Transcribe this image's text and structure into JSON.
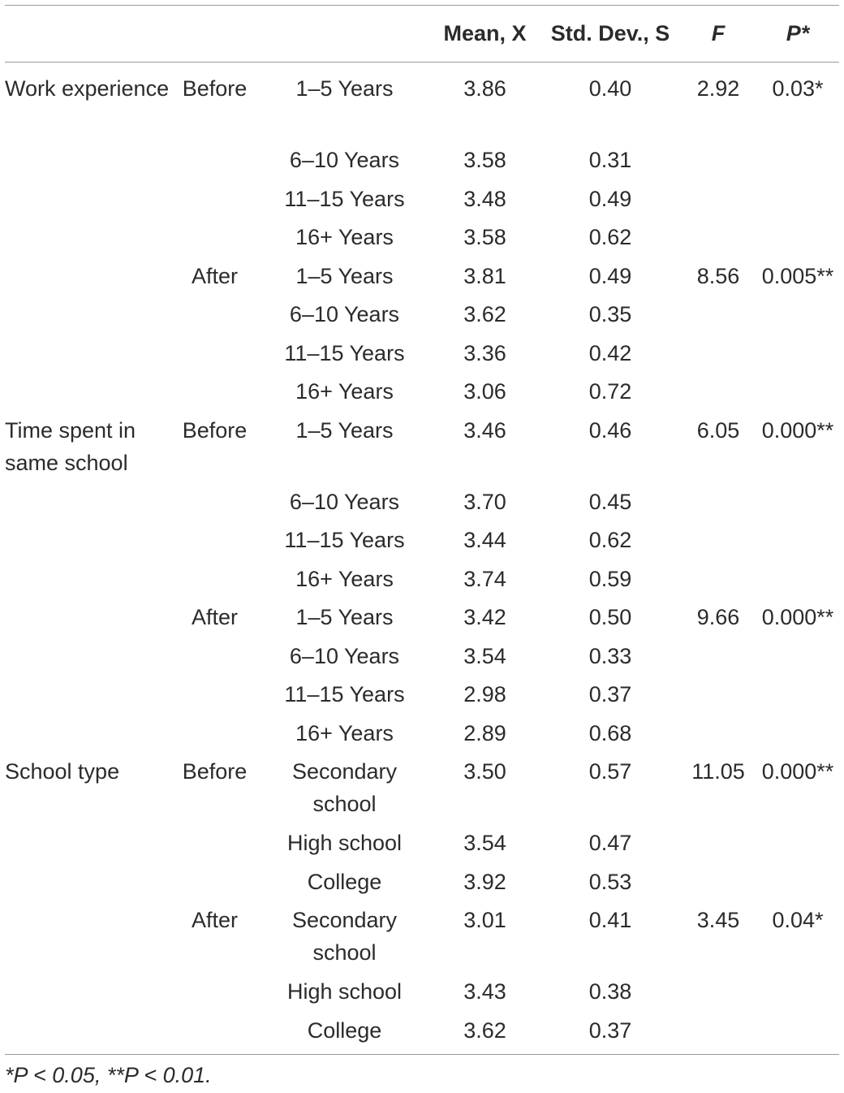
{
  "table": {
    "headers": [
      "",
      "",
      "",
      "Mean, X",
      "Std. Dev., S",
      "F",
      "P*"
    ],
    "rows": [
      {
        "group": "Work experience",
        "phase": "Before",
        "category": "1–5 Years",
        "mean": "3.86",
        "sd": "0.40",
        "f": "2.92",
        "p": "0.03*"
      },
      {
        "group": "",
        "phase": "",
        "category": "6–10 Years",
        "mean": "3.58",
        "sd": "0.31",
        "f": "",
        "p": ""
      },
      {
        "group": "",
        "phase": "",
        "category": "11–15 Years",
        "mean": "3.48",
        "sd": "0.49",
        "f": "",
        "p": ""
      },
      {
        "group": "",
        "phase": "",
        "category": "16+ Years",
        "mean": "3.58",
        "sd": "0.62",
        "f": "",
        "p": ""
      },
      {
        "group": "",
        "phase": "After",
        "category": "1–5 Years",
        "mean": "3.81",
        "sd": "0.49",
        "f": "8.56",
        "p": "0.005**"
      },
      {
        "group": "",
        "phase": "",
        "category": "6–10 Years",
        "mean": "3.62",
        "sd": "0.35",
        "f": "",
        "p": ""
      },
      {
        "group": "",
        "phase": "",
        "category": "11–15 Years",
        "mean": "3.36",
        "sd": "0.42",
        "f": "",
        "p": ""
      },
      {
        "group": "",
        "phase": "",
        "category": "16+ Years",
        "mean": "3.06",
        "sd": "0.72",
        "f": "",
        "p": ""
      },
      {
        "group": "Time spent in same school",
        "phase": "Before",
        "category": "1–5 Years",
        "mean": "3.46",
        "sd": "0.46",
        "f": "6.05",
        "p": "0.000**"
      },
      {
        "group": "",
        "phase": "",
        "category": "6–10 Years",
        "mean": "3.70",
        "sd": "0.45",
        "f": "",
        "p": ""
      },
      {
        "group": "",
        "phase": "",
        "category": "11–15 Years",
        "mean": "3.44",
        "sd": "0.62",
        "f": "",
        "p": ""
      },
      {
        "group": "",
        "phase": "",
        "category": "16+ Years",
        "mean": "3.74",
        "sd": "0.59",
        "f": "",
        "p": ""
      },
      {
        "group": "",
        "phase": "After",
        "category": "1–5 Years",
        "mean": "3.42",
        "sd": "0.50",
        "f": "9.66",
        "p": "0.000**"
      },
      {
        "group": "",
        "phase": "",
        "category": "6–10 Years",
        "mean": "3.54",
        "sd": "0.33",
        "f": "",
        "p": ""
      },
      {
        "group": "",
        "phase": "",
        "category": "11–15 Years",
        "mean": "2.98",
        "sd": "0.37",
        "f": "",
        "p": ""
      },
      {
        "group": "",
        "phase": "",
        "category": "16+ Years",
        "mean": "2.89",
        "sd": "0.68",
        "f": "",
        "p": ""
      },
      {
        "group": "School type",
        "phase": "Before",
        "category": "Secondary school",
        "mean": "3.50",
        "sd": "0.57",
        "f": "11.05",
        "p": "0.000**"
      },
      {
        "group": "",
        "phase": "",
        "category": "High school",
        "mean": "3.54",
        "sd": "0.47",
        "f": "",
        "p": ""
      },
      {
        "group": "",
        "phase": "",
        "category": "College",
        "mean": "3.92",
        "sd": "0.53",
        "f": "",
        "p": ""
      },
      {
        "group": "",
        "phase": "After",
        "category": "Secondary school",
        "mean": "3.01",
        "sd": "0.41",
        "f": "3.45",
        "p": "0.04*"
      },
      {
        "group": "",
        "phase": "",
        "category": "High school",
        "mean": "3.43",
        "sd": "0.38",
        "f": "",
        "p": ""
      },
      {
        "group": "",
        "phase": "",
        "category": "College",
        "mean": "3.62",
        "sd": "0.37",
        "f": "",
        "p": ""
      }
    ]
  },
  "footnote": "*P < 0.05, **P < 0.01."
}
